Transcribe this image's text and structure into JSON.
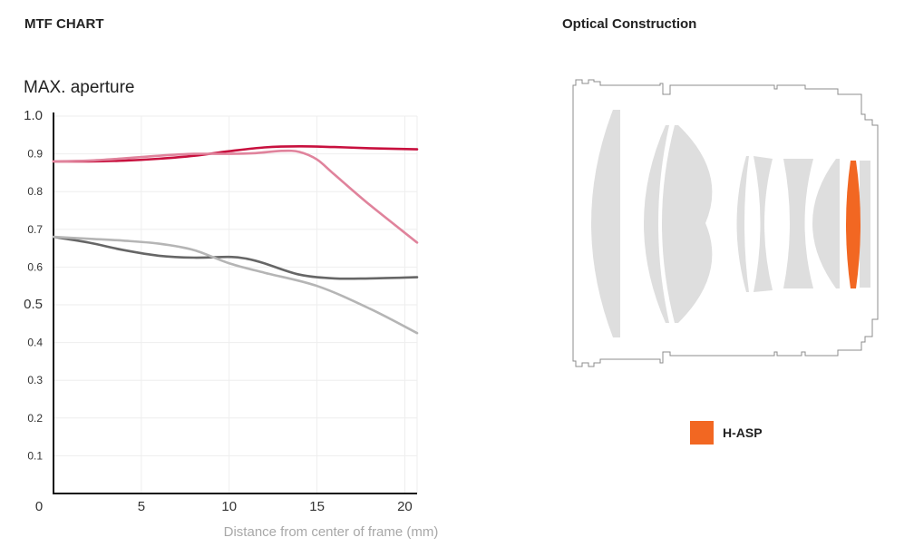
{
  "header": {
    "mtf_title": "MTF CHART",
    "optics_title": "Optical Construction"
  },
  "chart_data": {
    "type": "line",
    "subtitle": "MAX. aperture",
    "xlabel": "Distance from center of frame (mm)",
    "ylabel": "",
    "xlim": [
      0,
      20.7
    ],
    "ylim": [
      0,
      1.0
    ],
    "x_ticks": [
      {
        "value": 0,
        "label": "0"
      },
      {
        "value": 5,
        "label": "5"
      },
      {
        "value": 10,
        "label": "10"
      },
      {
        "value": 15,
        "label": "15"
      },
      {
        "value": 20,
        "label": "20"
      }
    ],
    "y_ticks": [
      {
        "value": 1.0,
        "label": "1.0"
      },
      {
        "value": 0.9,
        "label": "0.9"
      },
      {
        "value": 0.8,
        "label": "0.8"
      },
      {
        "value": 0.7,
        "label": "0.7"
      },
      {
        "value": 0.6,
        "label": "0.6"
      },
      {
        "value": 0.5,
        "label": "0.5"
      },
      {
        "value": 0.4,
        "label": "0.4"
      },
      {
        "value": 0.3,
        "label": "0.3"
      },
      {
        "value": 0.2,
        "label": "0.2"
      },
      {
        "value": 0.1,
        "label": "0.1"
      }
    ],
    "grid": true,
    "series": [
      {
        "color": "#c8103e",
        "x": [
          0,
          2,
          4,
          6,
          8,
          10,
          12,
          14,
          16,
          18,
          20.7
        ],
        "y": [
          0.88,
          0.88,
          0.882,
          0.887,
          0.895,
          0.907,
          0.917,
          0.92,
          0.918,
          0.915,
          0.912
        ]
      },
      {
        "color": "#e0839c",
        "x": [
          0,
          2,
          4,
          6,
          8,
          10,
          11.5,
          13,
          14,
          15,
          16,
          18,
          20.7
        ],
        "y": [
          0.88,
          0.882,
          0.888,
          0.895,
          0.9,
          0.9,
          0.902,
          0.908,
          0.905,
          0.885,
          0.845,
          0.765,
          0.665
        ]
      },
      {
        "color": "#666666",
        "x": [
          0,
          2,
          4,
          6,
          8,
          10,
          11,
          12,
          14,
          16,
          18,
          20.7
        ],
        "y": [
          0.68,
          0.665,
          0.645,
          0.63,
          0.625,
          0.627,
          0.622,
          0.61,
          0.58,
          0.57,
          0.57,
          0.573
        ]
      },
      {
        "color": "#b5b5b5",
        "x": [
          0,
          2,
          4,
          6,
          8,
          10,
          12,
          15,
          18,
          20.7
        ],
        "y": [
          0.68,
          0.675,
          0.67,
          0.662,
          0.645,
          0.61,
          0.585,
          0.55,
          0.49,
          0.425
        ]
      }
    ]
  },
  "optics": {
    "legend_label": "H-ASP",
    "legend_color": "#f26722",
    "lens_color": "#dedede",
    "asp_color": "#f26722"
  }
}
